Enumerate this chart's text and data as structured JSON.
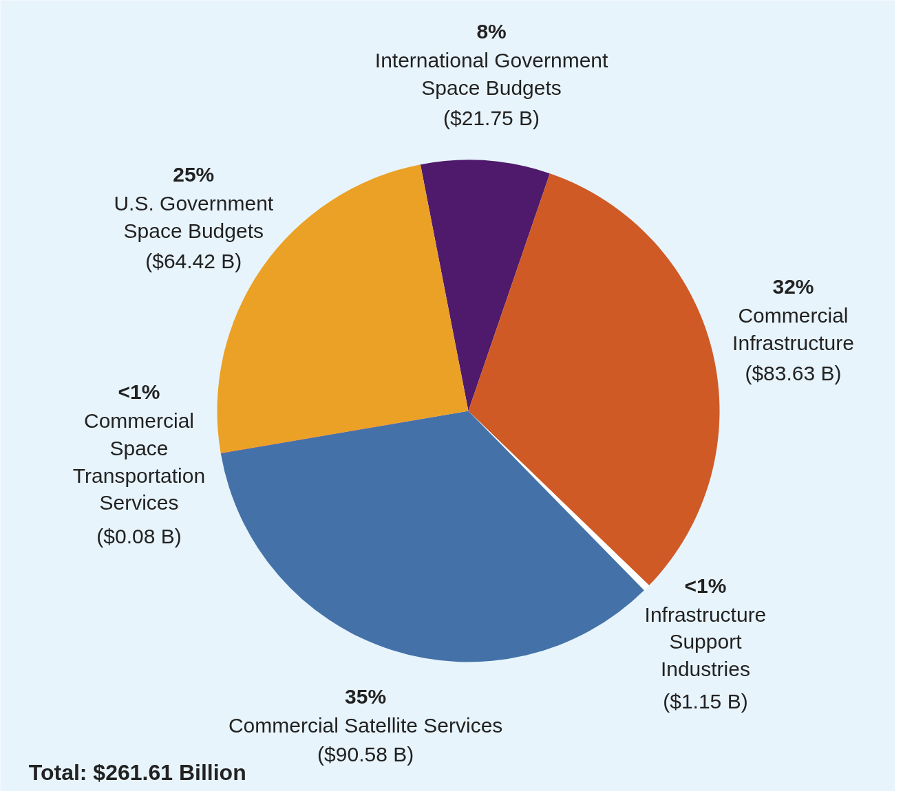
{
  "chart_data": {
    "type": "pie",
    "categories": [
      "8%\nInternational Government\nSpace Budgets",
      "32%\nCommercial\nInfrastructure",
      "<1%\nInfrastructure\nSupport\nIndustries",
      "35%\nCommercial Satellite Services",
      "<1%\nCommercial\nSpace\nTransportation\nServices",
      "25%\nU.S. Government\nSpace Budgets"
    ],
    "values": [
      21.75,
      83.63,
      1.15,
      90.58,
      0.08,
      64.42
    ],
    "colors": [
      "#4f1a6b",
      "#cf5a26",
      "#ffffff",
      "#4472a8",
      "#a01c1c",
      "#eba125"
    ],
    "value_labels": [
      "($21.75 B)",
      "($83.63 B)",
      "($1.15 B)",
      "($90.58 B)",
      "($0.08 B)",
      "($64.42 B)"
    ],
    "annotations": [
      "Total: $261.61 Billion"
    ]
  }
}
